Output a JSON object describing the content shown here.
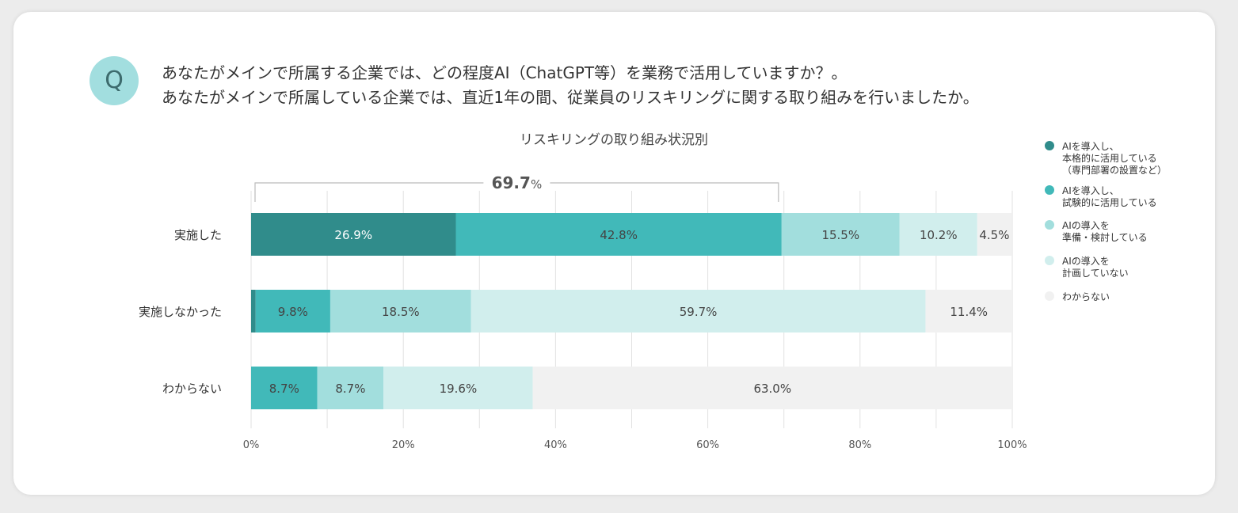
{
  "question": {
    "badge": "Q",
    "lines": [
      "あなたがメインで所属する企業では、どの程度AI（ChatGPT等）を業務で活用していますか？。",
      "あなたがメインで所属している企業では、直近1年の間、従業員のリスキリングに関する取り組みを行いましたか。"
    ]
  },
  "chart_data": {
    "type": "bar",
    "orientation": "horizontal",
    "stacked": true,
    "title": "リスキリングの取り組み状況別",
    "categories": [
      "実施した",
      "実施しなかった",
      "わからない"
    ],
    "series": [
      {
        "name": "AIを導入し、本格的に活用している（専門部署の設置など）",
        "legend_lines": [
          "AIを導入し、",
          "本格的に活用している",
          "（専門部署の設置など）"
        ],
        "color": "#308c8b",
        "values": [
          26.9,
          0.6,
          0
        ],
        "labels": [
          "26.9%",
          "",
          ""
        ]
      },
      {
        "name": "AIを導入し、試験的に活用している",
        "legend_lines": [
          "AIを導入し、",
          "試験的に活用している"
        ],
        "color": "#41b9b9",
        "values": [
          42.8,
          9.8,
          8.7
        ],
        "labels": [
          "42.8%",
          "9.8%",
          "8.7%"
        ]
      },
      {
        "name": "AIの導入を準備・検討している",
        "legend_lines": [
          "AIの導入を",
          "準備・検討している"
        ],
        "color": "#a2dedd",
        "values": [
          15.5,
          18.5,
          8.7
        ],
        "labels": [
          "15.5%",
          "18.5%",
          "8.7%"
        ]
      },
      {
        "name": "AIの導入を計画していない",
        "legend_lines": [
          "AIの導入を",
          "計画していない"
        ],
        "color": "#d1eeed",
        "values": [
          10.2,
          59.7,
          19.6
        ],
        "labels": [
          "10.2%",
          "59.7%",
          "19.6%"
        ]
      },
      {
        "name": "わからない",
        "legend_lines": [
          "わからない"
        ],
        "color": "#f1f1f1",
        "values": [
          4.5,
          11.4,
          63.0
        ],
        "labels": [
          "4.5%",
          "11.4%",
          "63.0%"
        ]
      }
    ],
    "xlim": [
      0,
      100
    ],
    "xticks": [
      "0%",
      "20%",
      "40%",
      "60%",
      "80%",
      "100%"
    ],
    "grid": true,
    "legend": "right",
    "annotation": {
      "value": "69.7",
      "unit": "%",
      "category": "実施した",
      "from": 0,
      "to": 69.7
    }
  }
}
